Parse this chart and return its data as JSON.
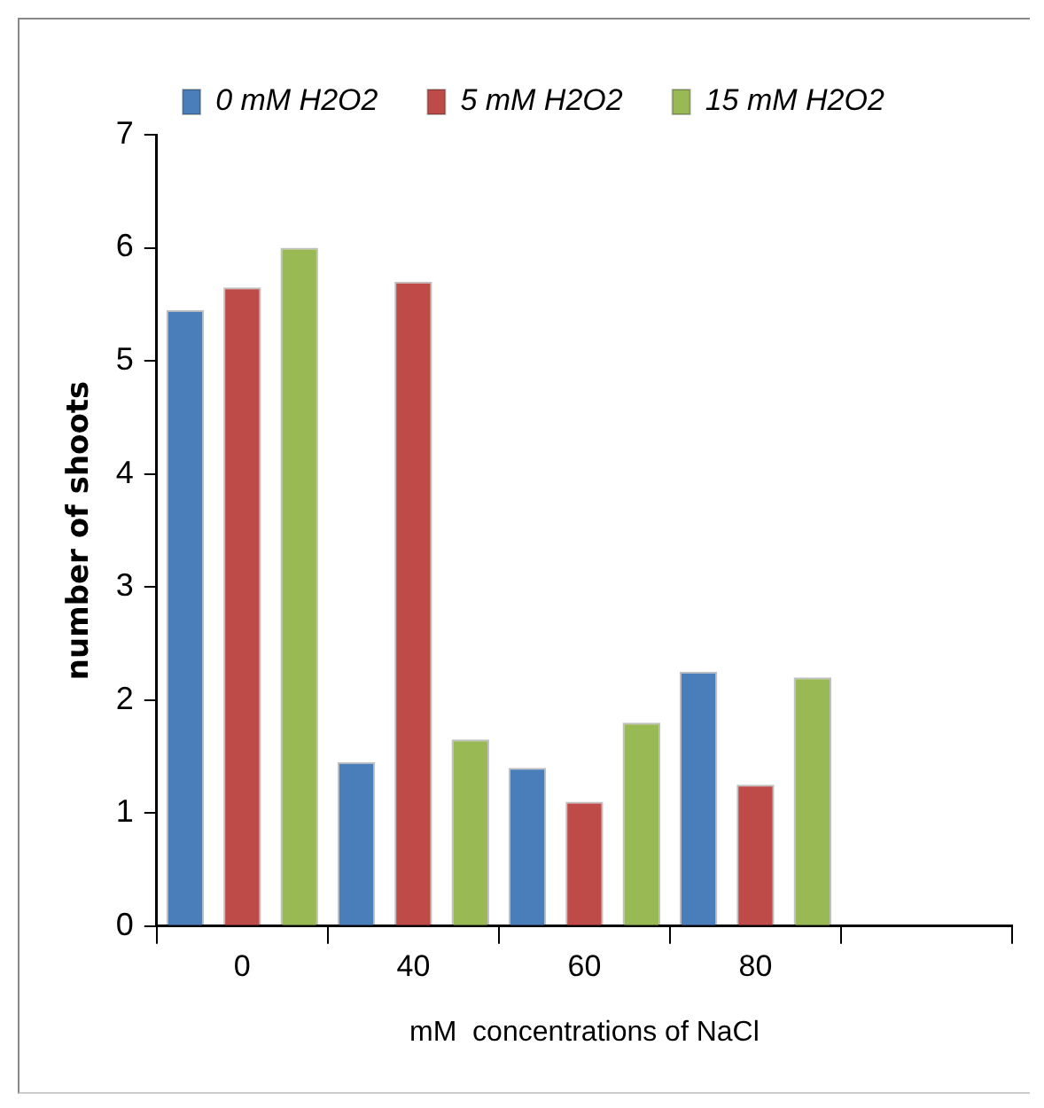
{
  "chart_data": {
    "type": "bar",
    "xlabel": "mM  concentrations of NaCl",
    "ylabel": "number of shoots",
    "categories": [
      "0",
      "40",
      "60",
      "80",
      null
    ],
    "series": [
      {
        "name": "0 mM H2O2",
        "color": "#4a7ebb",
        "values": [
          5.45,
          1.45,
          1.4,
          2.25,
          null
        ]
      },
      {
        "name": "5 mM H2O2",
        "color": "#be4b48",
        "values": [
          5.65,
          5.7,
          1.1,
          1.25,
          null
        ]
      },
      {
        "name": "15 mM H2O2",
        "color": "#98b954",
        "values": [
          6.0,
          1.65,
          1.8,
          2.2,
          null
        ]
      }
    ],
    "ylim": [
      0,
      7
    ],
    "yticks": [
      0,
      1,
      2,
      3,
      4,
      5,
      6,
      7
    ],
    "grid": false,
    "legend": "top"
  }
}
